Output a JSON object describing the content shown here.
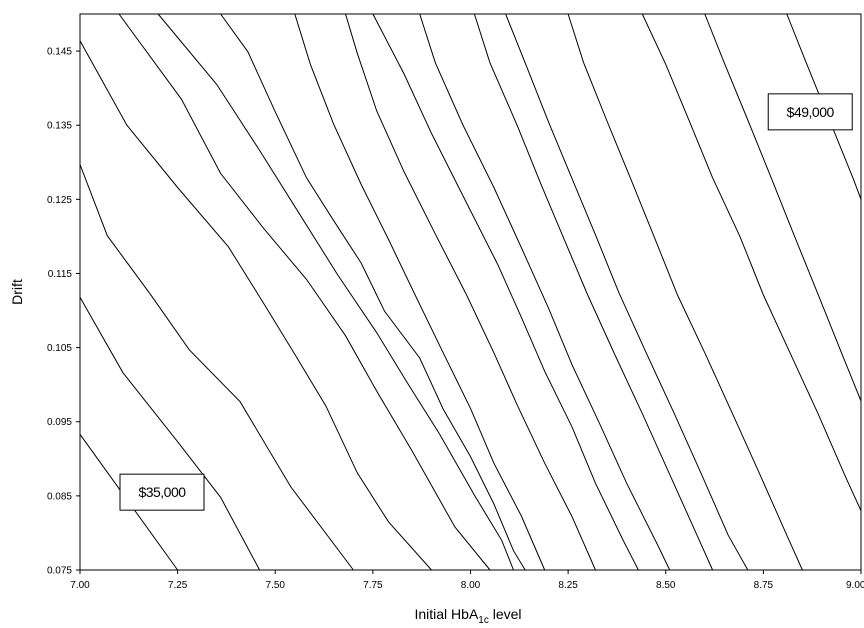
{
  "chart_data": {
    "type": "contour",
    "xlabel": "Initial HbA",
    "xlabel_sub": "1c",
    "xlabel_suffix": " level",
    "ylabel": "Drift",
    "xlim": [
      7.0,
      9.0
    ],
    "ylim": [
      0.075,
      0.15
    ],
    "x_ticks": [
      7.0,
      7.25,
      7.5,
      7.75,
      8.0,
      8.25,
      8.5,
      8.75,
      9.0
    ],
    "x_tick_labels": [
      "7.00",
      "7.25",
      "7.50",
      "7.75",
      "8.00",
      "8.25",
      "8.50",
      "8.75",
      "9.00"
    ],
    "y_ticks": [
      0.075,
      0.085,
      0.095,
      0.105,
      0.115,
      0.125,
      0.135,
      0.145
    ],
    "y_tick_labels": [
      "0.075",
      "0.085",
      "0.095",
      "0.105",
      "0.115",
      "0.125",
      "0.135",
      "0.145"
    ],
    "grid": false,
    "contours": [
      {
        "points": [
          [
            7.0,
            0.0933
          ],
          [
            7.25,
            0.075
          ]
        ]
      },
      {
        "points": [
          [
            7.0,
            0.1118
          ],
          [
            7.11,
            0.1016
          ],
          [
            7.25,
            0.0923
          ],
          [
            7.36,
            0.0848
          ],
          [
            7.46,
            0.075
          ]
        ]
      },
      {
        "points": [
          [
            7.0,
            0.1297
          ],
          [
            7.07,
            0.1201
          ],
          [
            7.18,
            0.1122
          ],
          [
            7.28,
            0.1047
          ],
          [
            7.41,
            0.0977
          ],
          [
            7.54,
            0.0862
          ],
          [
            7.7,
            0.075
          ]
        ]
      },
      {
        "points": [
          [
            7.0,
            0.1464
          ],
          [
            7.12,
            0.135
          ],
          [
            7.25,
            0.1266
          ],
          [
            7.38,
            0.1186
          ],
          [
            7.47,
            0.111
          ],
          [
            7.55,
            0.1041
          ],
          [
            7.63,
            0.0971
          ],
          [
            7.71,
            0.0881
          ],
          [
            7.79,
            0.0815
          ],
          [
            7.9,
            0.075
          ]
        ]
      },
      {
        "points": [
          [
            7.1,
            0.15
          ],
          [
            7.26,
            0.1385
          ],
          [
            7.36,
            0.1285
          ],
          [
            7.47,
            0.1211
          ],
          [
            7.58,
            0.1142
          ],
          [
            7.68,
            0.1066
          ],
          [
            7.76,
            0.0991
          ],
          [
            7.85,
            0.0911
          ],
          [
            7.96,
            0.0808
          ],
          [
            8.05,
            0.075
          ]
        ]
      },
      {
        "points": [
          [
            7.2,
            0.15
          ],
          [
            7.35,
            0.1405
          ],
          [
            7.46,
            0.1316
          ],
          [
            7.56,
            0.1232
          ],
          [
            7.66,
            0.1148
          ],
          [
            7.76,
            0.107
          ],
          [
            7.84,
            0.1001
          ],
          [
            7.92,
            0.0934
          ],
          [
            8.01,
            0.0851
          ],
          [
            8.08,
            0.079
          ],
          [
            8.11,
            0.075
          ]
        ]
      },
      {
        "points": [
          [
            7.36,
            0.15
          ],
          [
            7.43,
            0.1449
          ],
          [
            7.5,
            0.1368
          ],
          [
            7.58,
            0.1279
          ],
          [
            7.65,
            0.1221
          ],
          [
            7.72,
            0.1164
          ],
          [
            7.78,
            0.1099
          ],
          [
            7.87,
            0.1036
          ],
          [
            7.93,
            0.0967
          ],
          [
            8.0,
            0.0903
          ],
          [
            8.06,
            0.0839
          ],
          [
            8.11,
            0.0776
          ],
          [
            8.14,
            0.075
          ]
        ]
      },
      {
        "points": [
          [
            7.55,
            0.15
          ],
          [
            7.59,
            0.1432
          ],
          [
            7.65,
            0.1351
          ],
          [
            7.72,
            0.127
          ],
          [
            7.79,
            0.1196
          ],
          [
            7.86,
            0.1119
          ],
          [
            7.93,
            0.1043
          ],
          [
            8.0,
            0.0968
          ],
          [
            8.06,
            0.0894
          ],
          [
            8.13,
            0.0823
          ],
          [
            8.19,
            0.075
          ]
        ]
      },
      {
        "points": [
          [
            7.68,
            0.15
          ],
          [
            7.71,
            0.1447
          ],
          [
            7.76,
            0.1369
          ],
          [
            7.83,
            0.1287
          ],
          [
            7.91,
            0.1203
          ],
          [
            7.99,
            0.1121
          ],
          [
            8.06,
            0.1043
          ],
          [
            8.12,
            0.0972
          ],
          [
            8.19,
            0.0894
          ],
          [
            8.26,
            0.0822
          ],
          [
            8.32,
            0.075
          ]
        ]
      },
      {
        "points": [
          [
            7.75,
            0.15
          ],
          [
            7.83,
            0.1419
          ],
          [
            7.9,
            0.1339
          ],
          [
            7.99,
            0.1245
          ],
          [
            8.07,
            0.1162
          ],
          [
            8.13,
            0.1091
          ],
          [
            8.19,
            0.1018
          ],
          [
            8.26,
            0.0943
          ],
          [
            8.32,
            0.0867
          ],
          [
            8.39,
            0.0791
          ],
          [
            8.43,
            0.075
          ]
        ]
      },
      {
        "points": [
          [
            7.87,
            0.15
          ],
          [
            7.91,
            0.1434
          ],
          [
            7.98,
            0.1351
          ],
          [
            8.06,
            0.1266
          ],
          [
            8.13,
            0.1185
          ],
          [
            8.2,
            0.1103
          ],
          [
            8.26,
            0.1027
          ],
          [
            8.33,
            0.0948
          ],
          [
            8.4,
            0.0867
          ],
          [
            8.48,
            0.0783
          ],
          [
            8.51,
            0.075
          ]
        ]
      },
      {
        "points": [
          [
            8.01,
            0.15
          ],
          [
            8.05,
            0.1434
          ],
          [
            8.12,
            0.1349
          ],
          [
            8.18,
            0.1271
          ],
          [
            8.24,
            0.1196
          ],
          [
            8.3,
            0.1121
          ],
          [
            8.37,
            0.104
          ],
          [
            8.44,
            0.0961
          ],
          [
            8.51,
            0.0879
          ],
          [
            8.58,
            0.0797
          ],
          [
            8.62,
            0.075
          ]
        ]
      },
      {
        "points": [
          [
            8.09,
            0.15
          ],
          [
            8.14,
            0.1434
          ],
          [
            8.2,
            0.1354
          ],
          [
            8.26,
            0.1278
          ],
          [
            8.32,
            0.1202
          ],
          [
            8.38,
            0.1124
          ],
          [
            8.45,
            0.1043
          ],
          [
            8.52,
            0.0963
          ],
          [
            8.59,
            0.0881
          ],
          [
            8.66,
            0.0797
          ],
          [
            8.71,
            0.075
          ]
        ]
      },
      {
        "points": [
          [
            8.25,
            0.15
          ],
          [
            8.29,
            0.1434
          ],
          [
            8.35,
            0.1355
          ],
          [
            8.41,
            0.1278
          ],
          [
            8.47,
            0.12
          ],
          [
            8.53,
            0.1121
          ],
          [
            8.6,
            0.1043
          ],
          [
            8.67,
            0.0962
          ],
          [
            8.74,
            0.088
          ],
          [
            8.81,
            0.0797
          ],
          [
            8.85,
            0.075
          ]
        ]
      },
      {
        "points": [
          [
            8.44,
            0.15
          ],
          [
            8.5,
            0.1432
          ],
          [
            8.56,
            0.1356
          ],
          [
            8.62,
            0.1279
          ],
          [
            8.69,
            0.12
          ],
          [
            8.75,
            0.1121
          ],
          [
            8.82,
            0.1041
          ],
          [
            8.89,
            0.0961
          ],
          [
            8.96,
            0.0876
          ],
          [
            9.0,
            0.083
          ]
        ]
      },
      {
        "points": [
          [
            8.6,
            0.15
          ],
          [
            8.65,
            0.1434
          ],
          [
            8.71,
            0.1357
          ],
          [
            8.77,
            0.1279
          ],
          [
            8.83,
            0.12
          ],
          [
            8.89,
            0.1122
          ],
          [
            8.95,
            0.1043
          ],
          [
            9.0,
            0.0978
          ]
        ]
      },
      {
        "points": [
          [
            8.81,
            0.15
          ],
          [
            8.86,
            0.1434
          ],
          [
            8.92,
            0.1356
          ],
          [
            8.98,
            0.1278
          ],
          [
            9.0,
            0.125
          ]
        ]
      }
    ],
    "annotations": [
      {
        "text": "$35,000",
        "x": 7.21,
        "y": 0.0855
      },
      {
        "text": "$49,000",
        "x": 8.87,
        "y": 0.1368
      }
    ]
  }
}
